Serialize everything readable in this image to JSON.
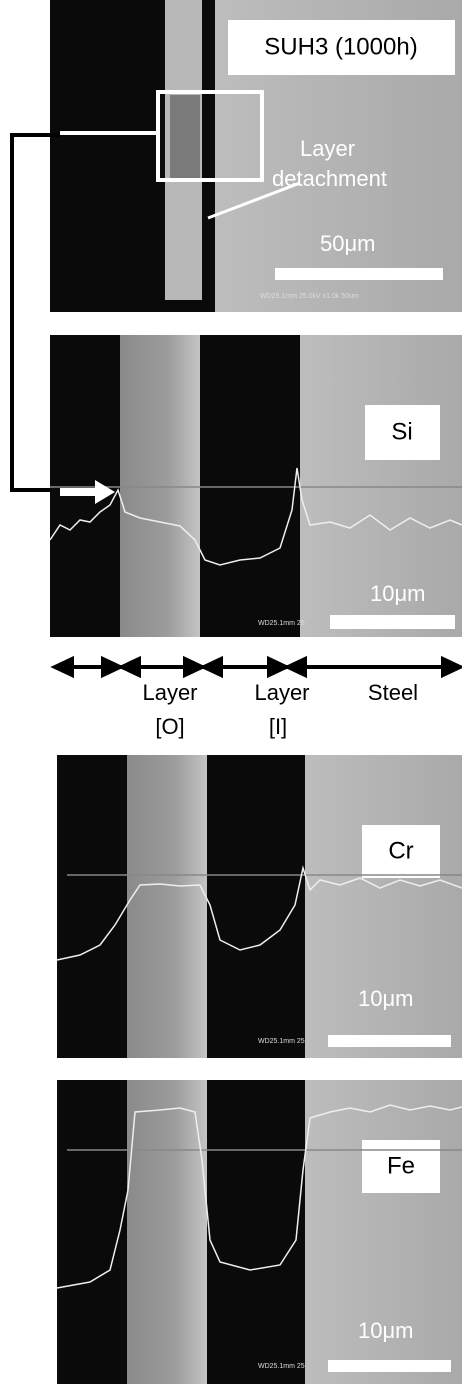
{
  "figure": {
    "panels": [
      {
        "label": "SUH3 (1000h)",
        "annotation": [
          "Layer",
          "detachment"
        ],
        "scale": "50μm",
        "footer": "WD25.1mm 25.0kV x1.0k  50um"
      },
      {
        "label": "Si",
        "scale": "10μm",
        "footer": "WD25.1mm 25"
      },
      {
        "label": "Cr",
        "scale": "10μm",
        "footer": "WD25.1mm 25"
      },
      {
        "label": "Fe",
        "scale": "10μm",
        "footer": "WD25.1mm 25"
      }
    ],
    "zones": [
      {
        "lines": [
          "Layer",
          "[O]"
        ]
      },
      {
        "lines": [
          "Layer",
          "[I]"
        ]
      },
      {
        "lines": [
          "Steel"
        ]
      }
    ]
  }
}
